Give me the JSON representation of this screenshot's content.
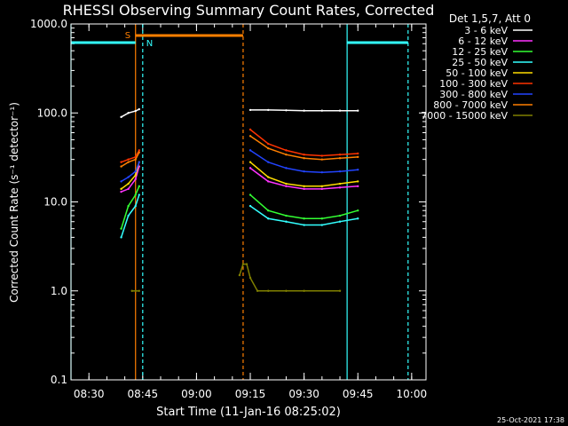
{
  "chart_data": {
    "type": "line",
    "title": "RHESSI Observing Summary Count Rates, Corrected",
    "xlabel": "Start Time (11-Jan-16 08:25:02)",
    "ylabel": "Corrected Count Rate (s⁻¹ detector⁻¹)",
    "yscale": "log",
    "ylim": [
      0.1,
      1000
    ],
    "xlim": [
      "08:25",
      "10:04"
    ],
    "x_ticks": [
      "08:30",
      "08:45",
      "09:00",
      "09:15",
      "09:30",
      "09:45",
      "10:00"
    ],
    "y_ticks": [
      "0.1",
      "1.0",
      "10.0",
      "100.0",
      "1000.0"
    ],
    "legend_header": "Det 1,5,7, Att 0",
    "legend_position": "top-right",
    "series": [
      {
        "name": "3 - 6 keV",
        "color": "#ffffff",
        "x": [
          "08:39",
          "08:41",
          "08:43",
          "08:44",
          "09:15",
          "09:20",
          "09:25",
          "09:30",
          "09:35",
          "09:40",
          "09:45"
        ],
        "y": [
          90,
          100,
          105,
          110,
          108,
          108,
          107,
          106,
          106,
          106,
          106
        ]
      },
      {
        "name": "6 - 12 keV",
        "color": "#ff33ff",
        "x": [
          "08:39",
          "08:41",
          "08:43",
          "08:44",
          "09:15",
          "09:20",
          "09:25",
          "09:30",
          "09:35",
          "09:40",
          "09:45"
        ],
        "y": [
          13,
          14,
          18,
          25,
          24,
          17,
          15,
          14,
          14,
          14.5,
          15
        ]
      },
      {
        "name": "12 - 25 keV",
        "color": "#33ff33",
        "x": [
          "08:39",
          "08:41",
          "08:43",
          "08:44",
          "09:15",
          "09:20",
          "09:25",
          "09:30",
          "09:35",
          "09:40",
          "09:45"
        ],
        "y": [
          5,
          9,
          12,
          15,
          12,
          8,
          7,
          6.5,
          6.5,
          7,
          8
        ]
      },
      {
        "name": "25 - 50 keV",
        "color": "#33ffff",
        "x": [
          "08:39",
          "08:41",
          "08:43",
          "08:44",
          "09:15",
          "09:20",
          "09:25",
          "09:30",
          "09:35",
          "09:40",
          "09:45"
        ],
        "y": [
          4,
          7,
          9,
          12,
          9,
          6.5,
          6,
          5.5,
          5.5,
          6,
          6.5
        ]
      },
      {
        "name": "50 - 100 keV",
        "color": "#ffdd00",
        "x": [
          "08:39",
          "08:41",
          "08:43",
          "08:44",
          "09:15",
          "09:20",
          "09:25",
          "09:30",
          "09:35",
          "09:40",
          "09:45"
        ],
        "y": [
          14,
          16,
          20,
          28,
          28,
          19,
          16,
          15,
          15,
          16,
          17
        ]
      },
      {
        "name": "100 - 300 keV",
        "color": "#ff3300",
        "x": [
          "08:39",
          "08:41",
          "08:43",
          "08:44",
          "09:15",
          "09:20",
          "09:25",
          "09:30",
          "09:35",
          "09:40",
          "09:45"
        ],
        "y": [
          28,
          30,
          32,
          38,
          65,
          45,
          38,
          34,
          33,
          34,
          35
        ]
      },
      {
        "name": "300 - 800 keV",
        "color": "#2244ff",
        "x": [
          "08:39",
          "08:41",
          "08:43",
          "08:44",
          "09:15",
          "09:20",
          "09:25",
          "09:30",
          "09:35",
          "09:40",
          "09:45"
        ],
        "y": [
          17,
          19,
          22,
          28,
          38,
          28,
          24,
          22,
          21.5,
          22,
          23
        ]
      },
      {
        "name": "800 - 7000 keV",
        "color": "#ff7f00",
        "x": [
          "08:39",
          "08:41",
          "08:43",
          "08:44",
          "09:15",
          "09:20",
          "09:25",
          "09:30",
          "09:35",
          "09:40",
          "09:45"
        ],
        "y": [
          25,
          28,
          30,
          36,
          55,
          40,
          34,
          31,
          30,
          31,
          32
        ]
      },
      {
        "name": "7000 - 15000 keV",
        "color": "#808000",
        "x": [
          "08:42",
          "08:43",
          "08:44",
          "09:12",
          "09:13",
          "09:14",
          "09:15",
          "09:17",
          "09:20",
          "09:25",
          "09:30",
          "09:40"
        ],
        "y": [
          1,
          1,
          1,
          1.5,
          2,
          2,
          1.4,
          1,
          1,
          1,
          1,
          1
        ]
      }
    ],
    "annotations": [
      {
        "text": "S",
        "color": "#ff7f00",
        "time": "08:43"
      },
      {
        "text": "N",
        "color": "#33ffff",
        "time": "08:45"
      }
    ],
    "footer_date": "25-Oct-2021 17:38"
  }
}
